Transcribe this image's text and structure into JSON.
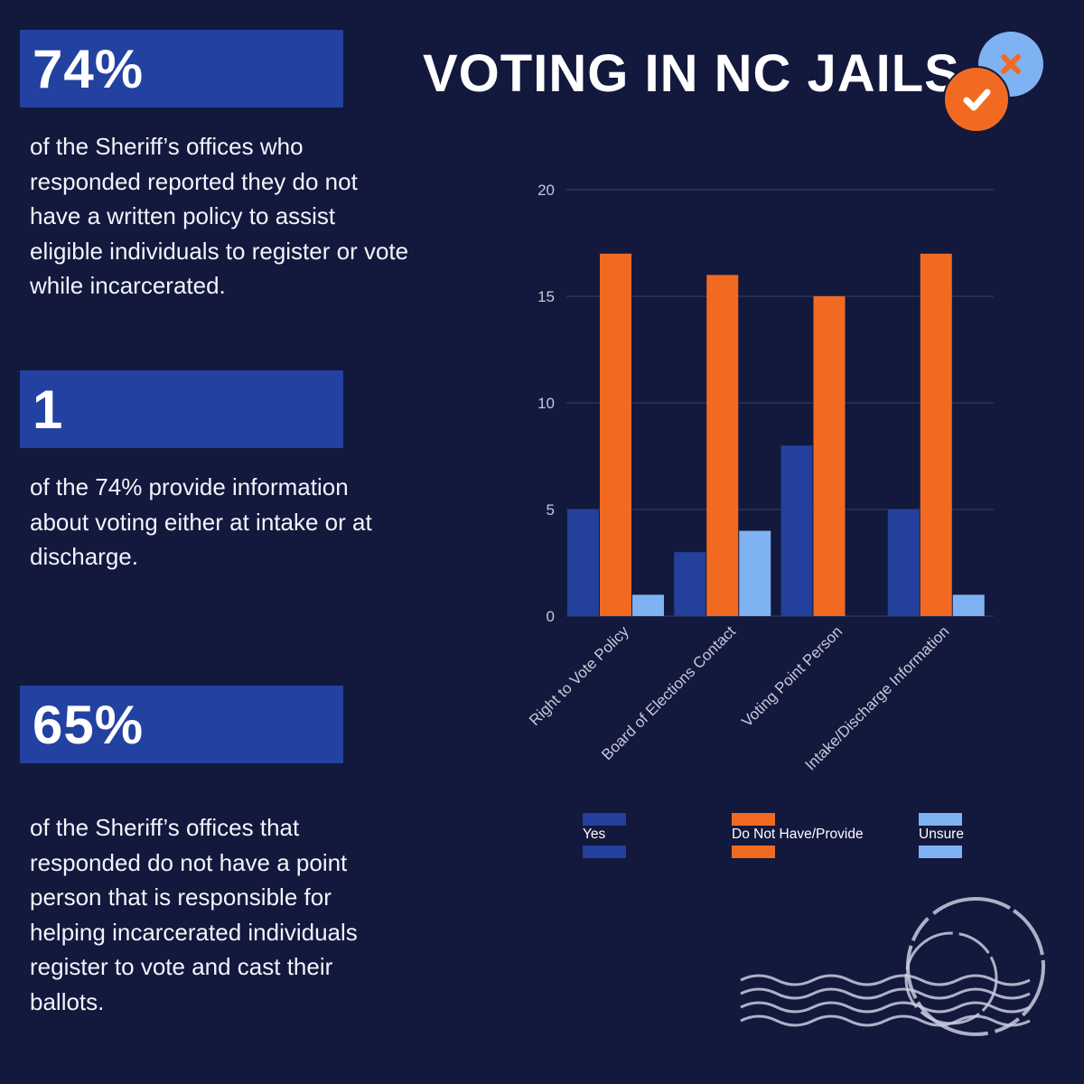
{
  "title": "VOTING IN NC JAILS",
  "stats": [
    {
      "value": "74%",
      "text": "of the Sheriff’s offices who responded reported they do not have a written policy to assist eligible individuals to register or vote while incarcerated."
    },
    {
      "value": "1",
      "text": "of the 74% provide information about voting either at intake or at discharge."
    },
    {
      "value": "65%",
      "text": "of the Sheriff’s offices that responded do not have a point person that is responsible for helping incarcerated individuals register to vote and cast their ballots."
    }
  ],
  "icons": {
    "badge_back": "x-mark-icon",
    "badge_front": "checkmark-icon",
    "stamp": "postmark-stamp-icon"
  },
  "colors": {
    "background": "#13183d",
    "stat_box": "#2341a0",
    "yes": "#22409c",
    "no": "#f26a21",
    "unsure": "#7eb2f2",
    "grid": "#3a4060",
    "axis_text": "#c5c9d8"
  },
  "chart_data": {
    "type": "bar",
    "categories": [
      "Right to Vote Policy",
      "Board of Elections Contact",
      "Voting Point Person",
      "Intake/Discharge Information"
    ],
    "series": [
      {
        "name": "Yes",
        "values": [
          5,
          3,
          8,
          5
        ],
        "color": "#22409c"
      },
      {
        "name": "Do Not Have/Provide",
        "values": [
          17,
          16,
          15,
          17
        ],
        "color": "#f26a21"
      },
      {
        "name": "Unsure",
        "values": [
          1,
          4,
          0,
          1
        ],
        "color": "#7eb2f2"
      }
    ],
    "y_ticks": [
      0,
      5,
      10,
      15,
      20
    ],
    "ylim": [
      0,
      20
    ],
    "grid": true,
    "legend": "bottom"
  }
}
